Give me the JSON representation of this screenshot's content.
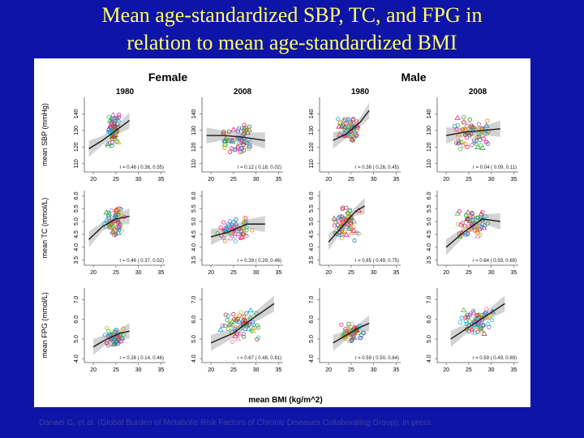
{
  "slide": {
    "title_line1": "Mean age-standardized SBP, TC, and FPG in",
    "title_line2": "relation to mean age-standardized BMI",
    "citation": "Danaei G, et al. (Global Burden of Metabolic Risk Factors of Chronic Diseases Collaborating Group). In press"
  },
  "colors": {
    "background": "#0f14a8",
    "title": "#ffff66",
    "panel": "#ffffff",
    "fit_line": "#1a1a1a",
    "ci_band": "#c8c8c8"
  },
  "chart_data": {
    "type": "scatter",
    "layout": "small multiples, 3 rows x 4 columns",
    "sex_headers": [
      "Female",
      "Male"
    ],
    "years": [
      "1980",
      "2008",
      "1980",
      "2008"
    ],
    "xlabel": "mean BMI (kg/m^2)",
    "x_ticks": [
      "20",
      "25",
      "30",
      "35"
    ],
    "xlim": [
      18,
      36
    ],
    "rows": [
      {
        "ylabel": "mean SBP (mmHg)",
        "y_ticks": [
          "110",
          "120",
          "130",
          "140"
        ],
        "ylim": [
          105,
          150
        ],
        "panels": [
          {
            "sex": "Female",
            "year": "1980",
            "r_text": "r = 0.46 ( 0.36, 0.55)",
            "fit": [
              [
                19,
                119
              ],
              [
                22,
                124
              ],
              [
                25,
                130
              ],
              [
                28,
                136
              ]
            ],
            "cluster": [
              23,
              26,
              120,
              140
            ]
          },
          {
            "sex": "Female",
            "year": "2008",
            "r_text": "r = 0.12 ( 0.18, 0.02)",
            "fit": [
              [
                19,
                127
              ],
              [
                23,
                127
              ],
              [
                27,
                126
              ],
              [
                32,
                124
              ]
            ],
            "cluster": [
              22,
              30,
              115,
              135
            ]
          },
          {
            "sex": "Male",
            "year": "1980",
            "r_text": "r = 0.36 ( 0.26, 0.45)",
            "fit": [
              [
                21,
                124
              ],
              [
                24,
                128
              ],
              [
                27,
                135
              ],
              [
                29,
                142
              ]
            ],
            "cluster": [
              22,
              27,
              122,
              140
            ]
          },
          {
            "sex": "Male",
            "year": "2008",
            "r_text": "r = 0.04 ( 0.09, 0.11)",
            "fit": [
              [
                20,
                127
              ],
              [
                24,
                129
              ],
              [
                28,
                130
              ],
              [
                32,
                131
              ]
            ],
            "cluster": [
              21,
              30,
              118,
              138
            ]
          }
        ]
      },
      {
        "ylabel": "mean TC (mmol/L)",
        "y_ticks": [
          "3.5",
          "4.0",
          "4.5",
          "5.0",
          "5.5",
          "6.0"
        ],
        "ylim": [
          3.3,
          6.2
        ],
        "panels": [
          {
            "sex": "Female",
            "year": "1980",
            "r_text": "r = 0.46 ( 0.37, 0.52)",
            "fit": [
              [
                19,
                4.3
              ],
              [
                22,
                4.8
              ],
              [
                25,
                5.1
              ],
              [
                28,
                5.2
              ]
            ],
            "cluster": [
              22,
              27,
              4.4,
              5.6
            ]
          },
          {
            "sex": "Female",
            "year": "2008",
            "r_text": "r = 0.39 ( 0.29, 0.46)",
            "fit": [
              [
                20,
                4.4
              ],
              [
                24,
                4.6
              ],
              [
                28,
                4.9
              ],
              [
                32,
                4.9
              ]
            ],
            "cluster": [
              21,
              30,
              4.2,
              5.2
            ]
          },
          {
            "sex": "Male",
            "year": "1980",
            "r_text": "r = 0.65 ( 0.49, 0.75)",
            "fit": [
              [
                20,
                4.2
              ],
              [
                23,
                4.8
              ],
              [
                26,
                5.4
              ],
              [
                28,
                5.6
              ]
            ],
            "cluster": [
              21,
              27,
              4.2,
              5.6
            ]
          },
          {
            "sex": "Male",
            "year": "2008",
            "r_text": "r = 0.64 ( 0.59, 0.69)",
            "fit": [
              [
                20,
                4.0
              ],
              [
                24,
                4.6
              ],
              [
                28,
                5.1
              ],
              [
                32,
                5.0
              ]
            ],
            "cluster": [
              22,
              30,
              4.3,
              5.5
            ]
          }
        ]
      },
      {
        "ylabel": "mean FPG (mmol/L)",
        "y_ticks": [
          "4.0",
          "5.0",
          "6.0",
          "7.0"
        ],
        "ylim": [
          3.8,
          7.6
        ],
        "panels": [
          {
            "sex": "Female",
            "year": "1980",
            "r_text": "r = 0.26 ( 0.14, 0.46)",
            "fit": [
              [
                20,
                4.6
              ],
              [
                23,
                5.0
              ],
              [
                26,
                5.3
              ],
              [
                28,
                5.4
              ]
            ],
            "cluster": [
              22,
              27,
              4.6,
              5.6
            ]
          },
          {
            "sex": "Female",
            "year": "2008",
            "r_text": "r = 0.67 ( 0.48, 0.81)",
            "fit": [
              [
                20,
                4.8
              ],
              [
                25,
                5.3
              ],
              [
                29,
                6.0
              ],
              [
                34,
                6.8
              ]
            ],
            "cluster": [
              22,
              32,
              4.8,
              6.6
            ]
          },
          {
            "sex": "Male",
            "year": "1980",
            "r_text": "r = 0.59 ( 0.50, 0.64)",
            "fit": [
              [
                21,
                4.8
              ],
              [
                24,
                5.2
              ],
              [
                27,
                5.6
              ],
              [
                29,
                5.8
              ]
            ],
            "cluster": [
              22,
              28,
              4.8,
              5.8
            ]
          },
          {
            "sex": "Male",
            "year": "2008",
            "r_text": "r = 0.59 ( 0.49, 0.69)",
            "fit": [
              [
                21,
                5.0
              ],
              [
                25,
                5.6
              ],
              [
                29,
                6.2
              ],
              [
                33,
                6.8
              ]
            ],
            "cluster": [
              23,
              31,
              5.2,
              6.6
            ]
          }
        ]
      }
    ]
  }
}
